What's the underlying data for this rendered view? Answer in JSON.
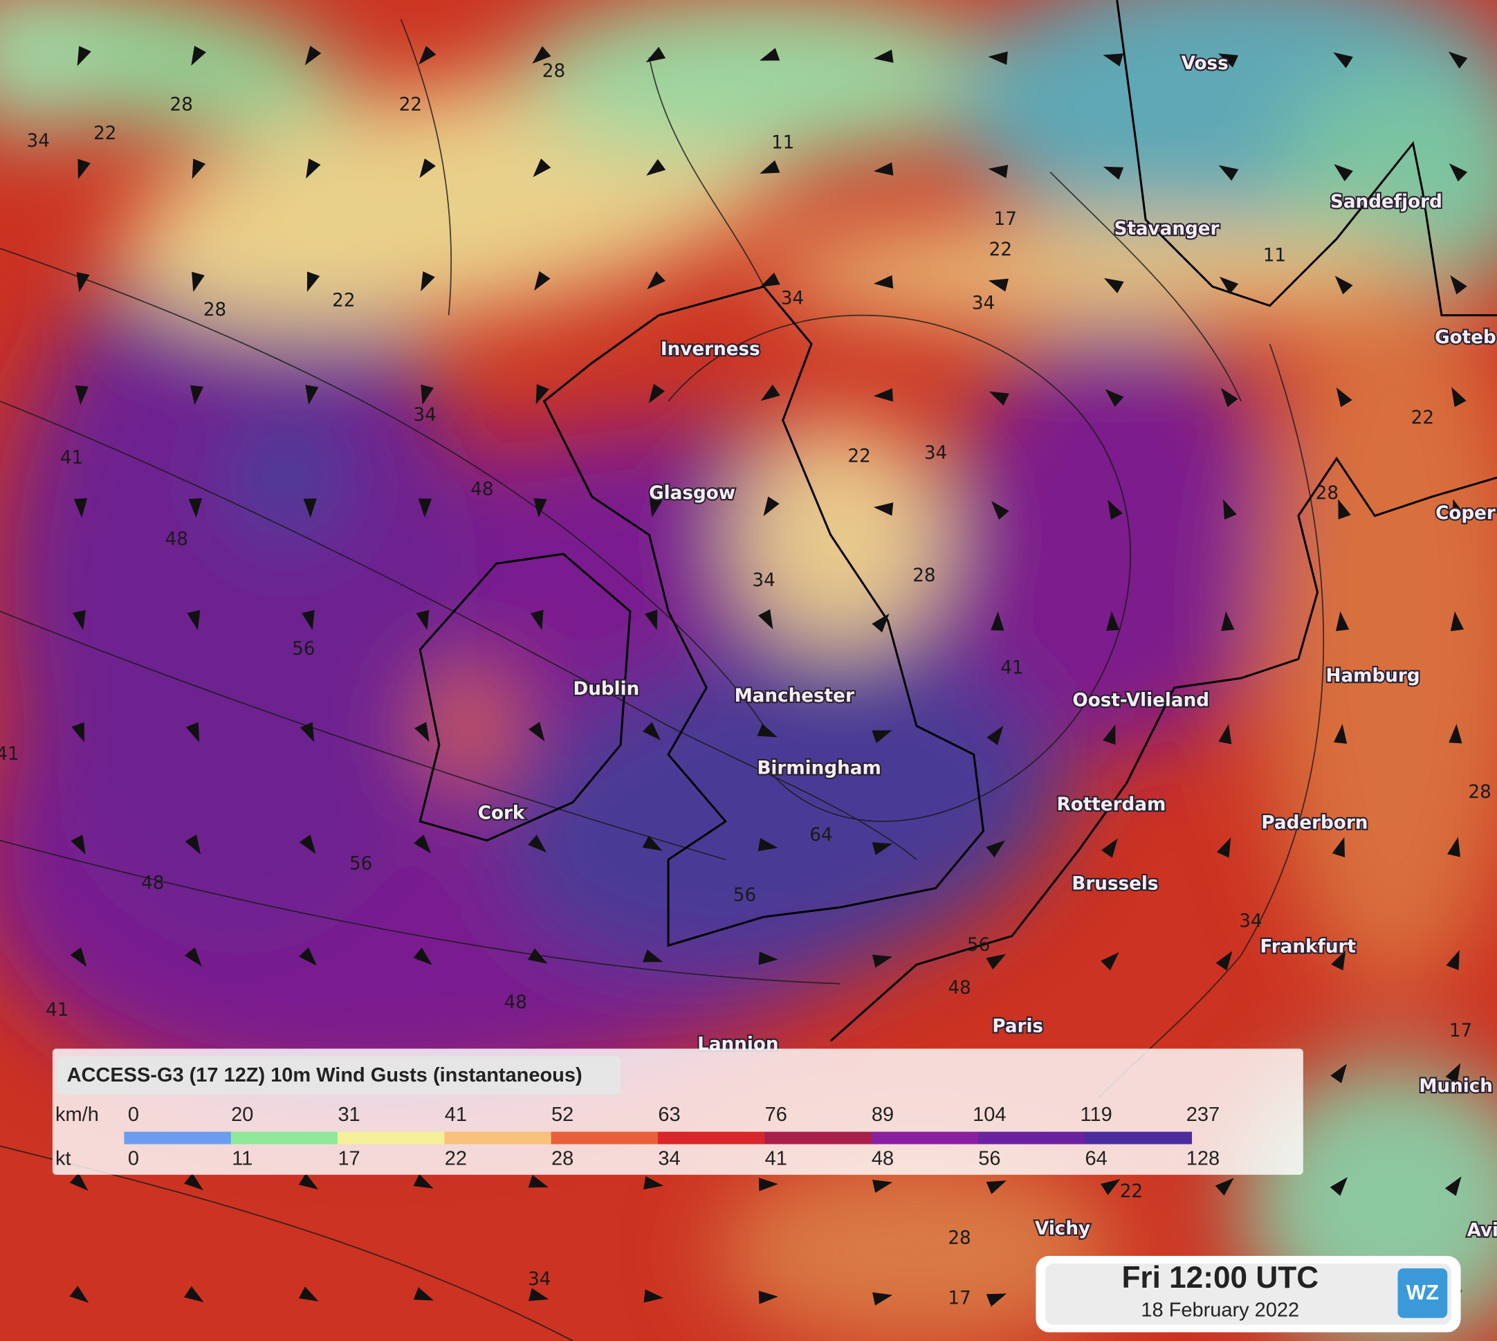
{
  "map": {
    "cities": [
      "Voss",
      "Stavanger",
      "Sandefjord",
      "Goteb",
      "Inverness",
      "Glasgow",
      "Coper",
      "Hamburg",
      "Dublin",
      "Manchester",
      "Oost-Vlieland",
      "Birmingham",
      "Cork",
      "Rotterdam",
      "Paderborn",
      "Brussels",
      "Frankfurt",
      "Paris",
      "Lannion",
      "Munich",
      "Vichy",
      "Avi"
    ],
    "contour_labels": [
      22,
      34,
      28,
      22,
      28,
      28,
      22,
      34,
      41,
      48,
      48,
      56,
      41,
      48,
      56,
      41,
      48,
      34,
      34,
      17,
      22,
      11,
      22,
      34,
      28,
      34,
      41,
      64,
      56,
      56,
      48,
      28,
      22,
      11,
      34,
      28,
      17,
      22,
      28,
      34,
      17
    ]
  },
  "legend": {
    "title": "ACCESS-G3 (17 12Z) 10m Wind Gusts (instantaneous)",
    "unit_top": "km/h",
    "unit_bottom": "kt",
    "kmh": [
      0,
      20,
      31,
      41,
      52,
      63,
      76,
      89,
      104,
      119,
      237
    ],
    "kt": [
      0,
      11,
      17,
      22,
      28,
      34,
      41,
      48,
      56,
      64,
      128
    ],
    "colors": [
      "#6b9cf0",
      "#8fe89a",
      "#f6ef9a",
      "#f8c27c",
      "#e8603a",
      "#d8262a",
      "#a8204a",
      "#8a1fa0",
      "#6a22a0",
      "#4a2c9e"
    ]
  },
  "time_box": {
    "time": "Fri 12:00 UTC",
    "date": "18 February 2022",
    "logo": "WZ"
  }
}
